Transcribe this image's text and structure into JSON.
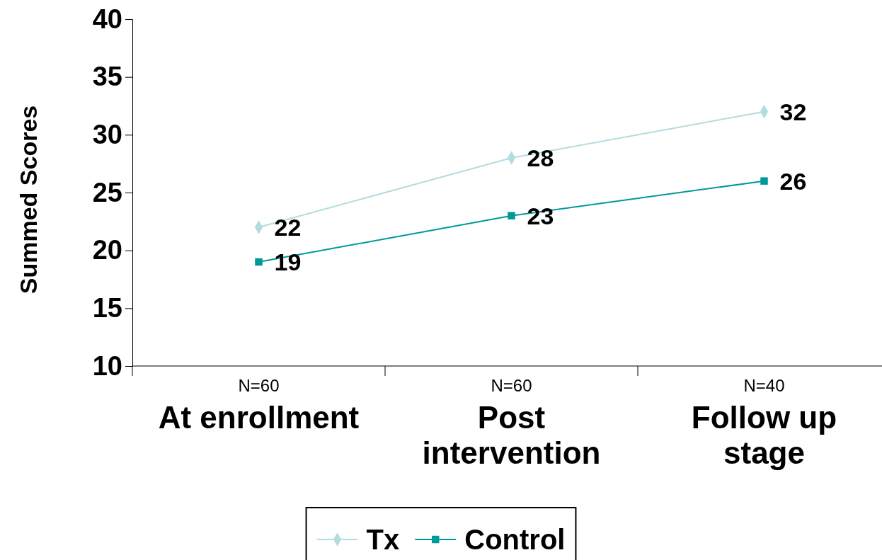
{
  "chart_data": {
    "type": "line",
    "ylabel": "Summed Scores",
    "categories": [
      "N=60\nAt enrollment",
      "N=60\nPost intervention",
      "N=40\nFollow up stage"
    ],
    "series": [
      {
        "name": "Tx",
        "color": "#b3dcdc",
        "marker": "diamond",
        "values": [
          22,
          28,
          32
        ]
      },
      {
        "name": "Control",
        "color": "#009999",
        "marker": "square",
        "values": [
          19,
          23,
          26
        ]
      }
    ],
    "ylim": [
      10,
      40
    ],
    "yticks": [
      10,
      15,
      20,
      25,
      30,
      35,
      40
    ],
    "grid": false,
    "legend": "bottom",
    "data_labels": true
  }
}
